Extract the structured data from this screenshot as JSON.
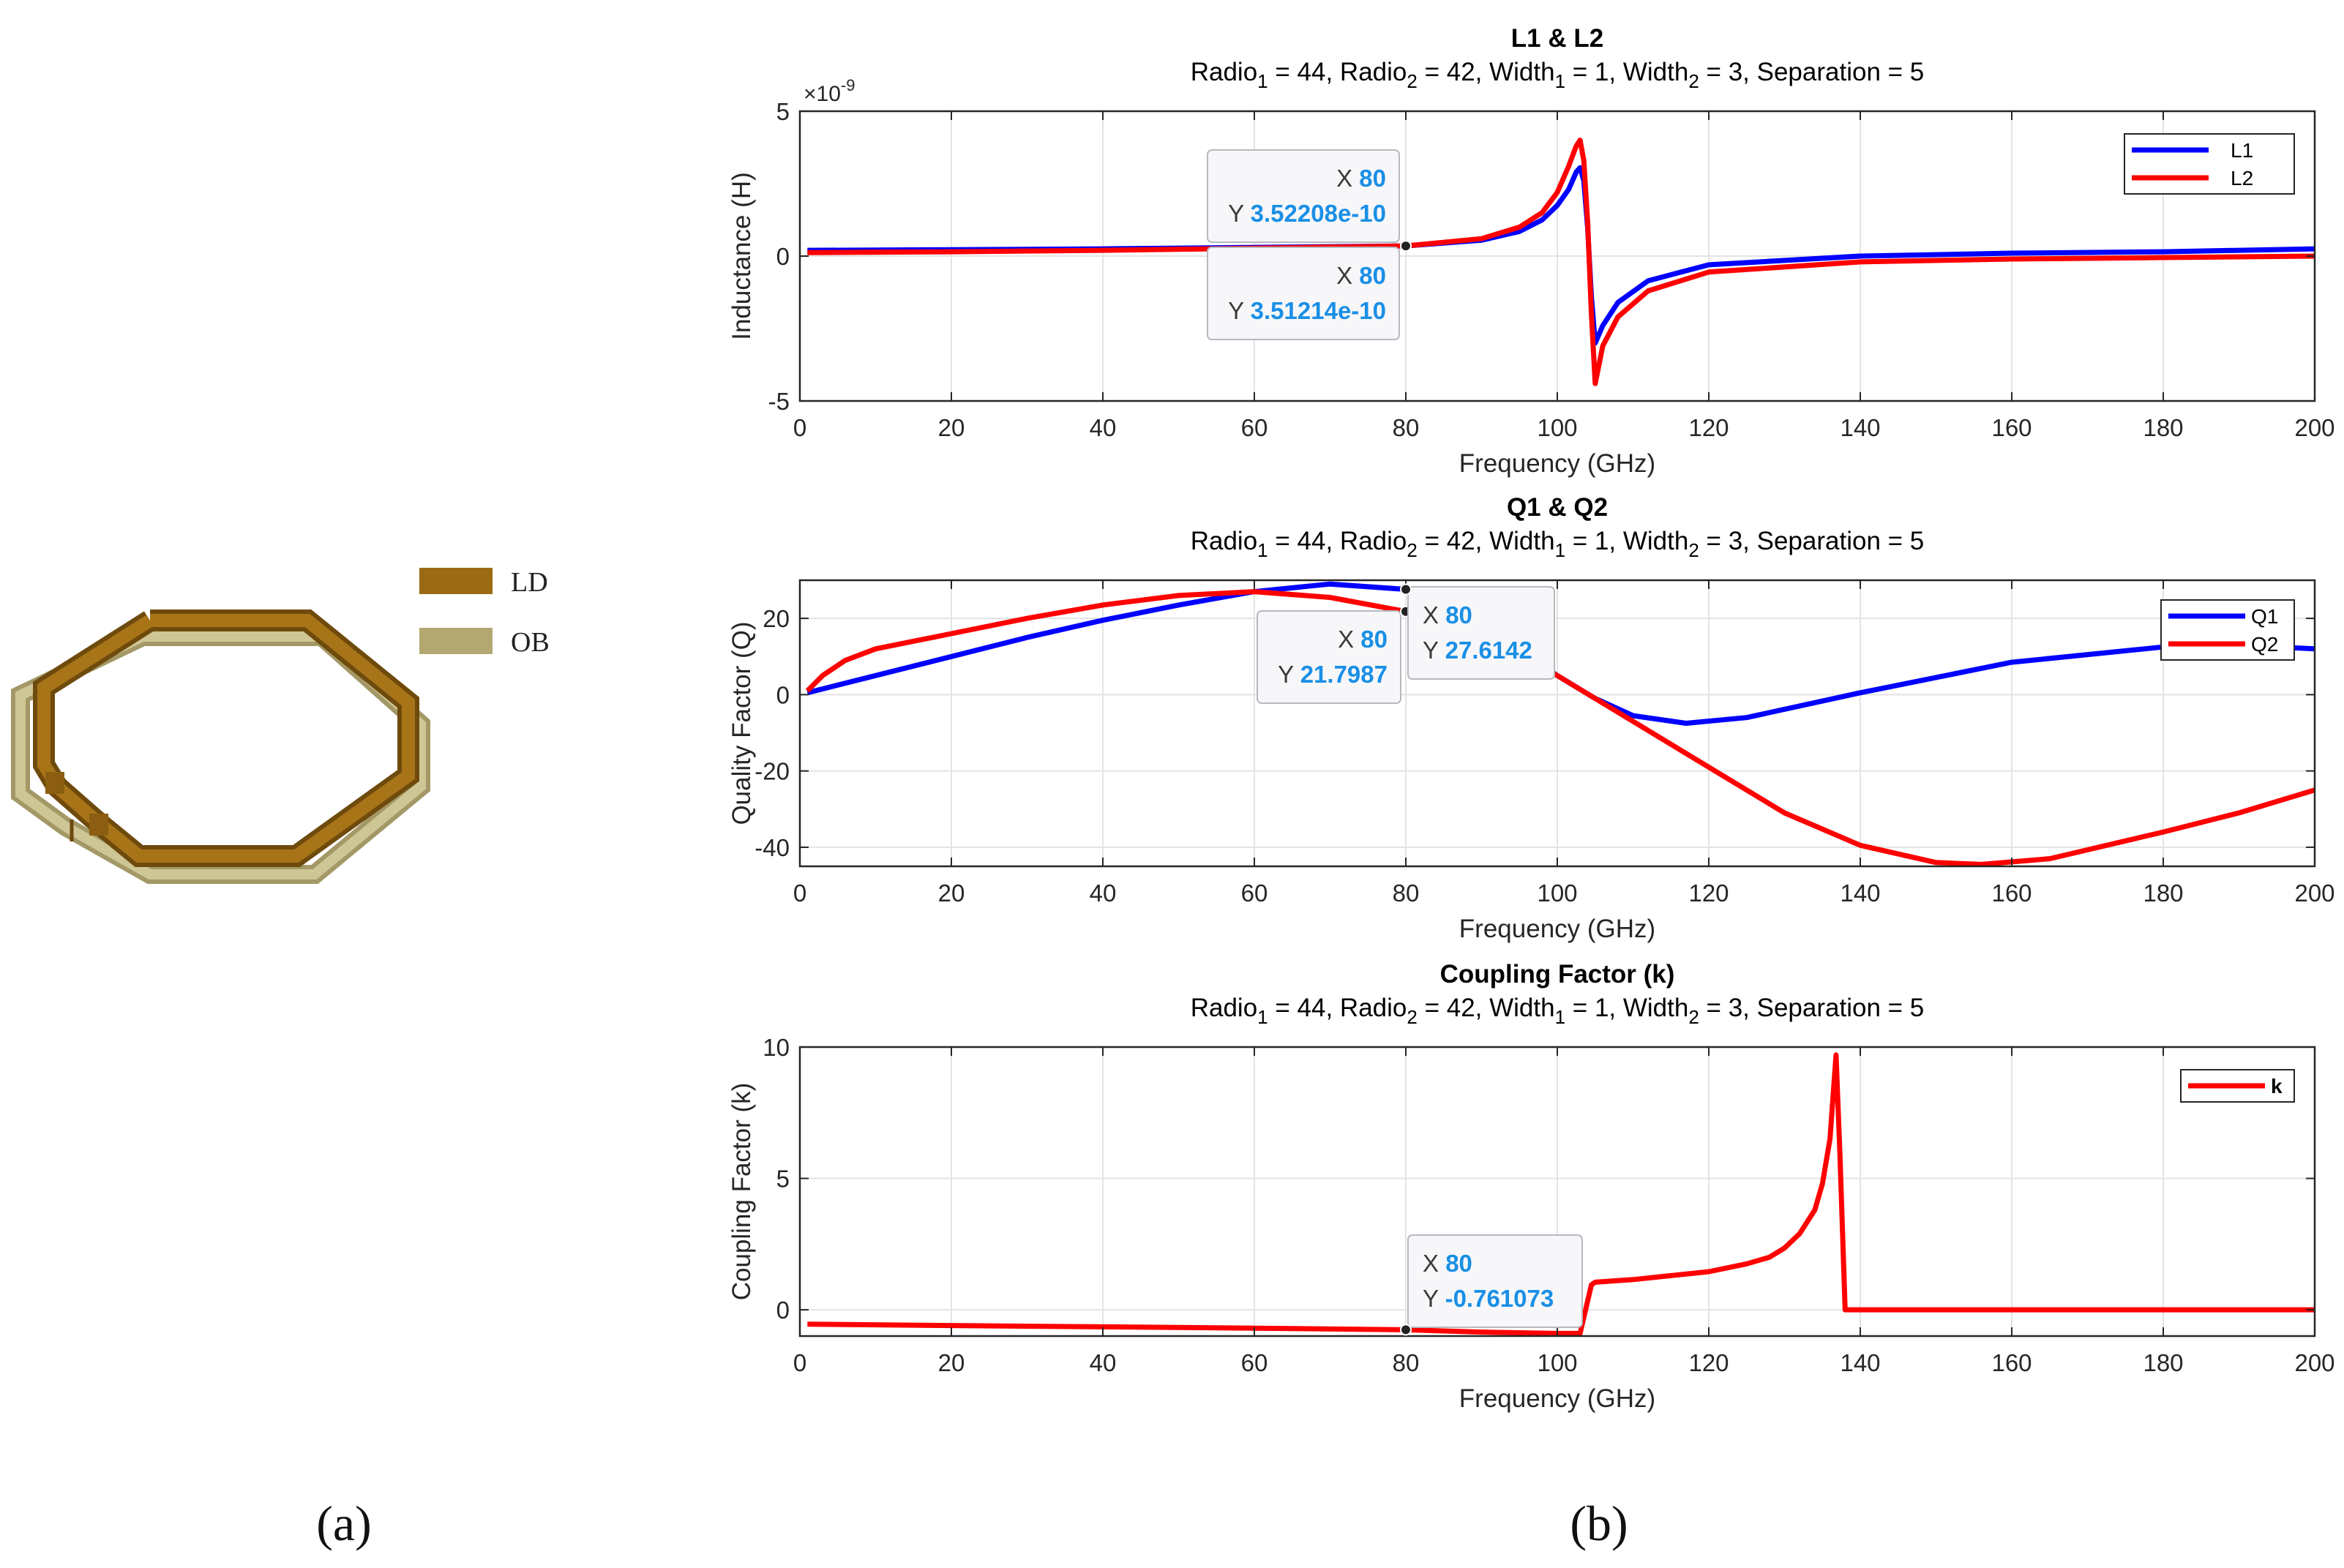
{
  "panel_labels": {
    "a": "(a)",
    "b": "(b)"
  },
  "legend_3d": {
    "ld": "LD",
    "ob": "OB",
    "ld_color": "#9a6a14",
    "ob_color": "#b3a871"
  },
  "subtitle": {
    "radio1": "Radio",
    "sub1": "1",
    "rest1": " = 44, ",
    "radio2": "Radio",
    "sub2": "2",
    "rest2": " = 42, ",
    "width1": "Width",
    "sub3": "1",
    "rest3": " = 1, ",
    "width2": "Width",
    "sub4": "2",
    "rest4": " = 3, Separation = 5"
  },
  "chart_data": [
    {
      "type": "line",
      "title": "L1 & L2",
      "xlabel": "Frequency (GHz)",
      "ylabel": "Inductance (H)",
      "exponent_label": "×10",
      "exponent_power": "-9",
      "xlim": [
        0,
        200
      ],
      "ylim": [
        -5,
        5
      ],
      "xticks": [
        0,
        20,
        40,
        60,
        80,
        100,
        120,
        140,
        160,
        180,
        200
      ],
      "yticks": [
        -5,
        0,
        5
      ],
      "series": [
        {
          "name": "L1",
          "color": "#0000ff",
          "x": [
            1,
            20,
            40,
            60,
            80,
            90,
            95,
            98,
            100,
            101.5,
            102.5,
            103,
            103.5,
            104,
            104.5,
            105,
            106,
            108,
            112,
            120,
            140,
            160,
            180,
            200
          ],
          "y": [
            0.2,
            0.22,
            0.25,
            0.3,
            0.352,
            0.55,
            0.85,
            1.25,
            1.75,
            2.3,
            2.9,
            3.05,
            2.6,
            1.0,
            -1.4,
            -3.0,
            -2.4,
            -1.6,
            -0.85,
            -0.3,
            0.0,
            0.1,
            0.15,
            0.25
          ]
        },
        {
          "name": "L2",
          "color": "#ff0000",
          "x": [
            1,
            20,
            40,
            60,
            80,
            90,
            95,
            98,
            100,
            101.5,
            102.5,
            103,
            103.5,
            104,
            104.5,
            105,
            106,
            108,
            112,
            120,
            140,
            160,
            180,
            200
          ],
          "y": [
            0.12,
            0.15,
            0.2,
            0.27,
            0.351,
            0.6,
            1.0,
            1.5,
            2.2,
            3.1,
            3.8,
            4.0,
            3.3,
            1.2,
            -2.0,
            -4.4,
            -3.1,
            -2.1,
            -1.2,
            -0.55,
            -0.2,
            -0.1,
            -0.05,
            0.0
          ]
        }
      ],
      "datatips": [
        {
          "x_label": "X",
          "x_value": "80",
          "y_label": "Y",
          "y_value": "3.52208e-10",
          "at_x": 80,
          "at_y": 0.352
        },
        {
          "x_label": "X",
          "x_value": "80",
          "y_label": "Y",
          "y_value": "3.51214e-10",
          "at_x": 80,
          "at_y": 0.351
        }
      ]
    },
    {
      "type": "line",
      "title": "Q1 & Q2",
      "xlabel": "Frequency (GHz)",
      "ylabel": "Quality Factor (Q)",
      "xlim": [
        0,
        200
      ],
      "ylim": [
        -45,
        30
      ],
      "xticks": [
        0,
        20,
        40,
        60,
        80,
        100,
        120,
        140,
        160,
        180,
        200
      ],
      "yticks": [
        -40,
        -20,
        0,
        20
      ],
      "series": [
        {
          "name": "Q1",
          "color": "#0000ff",
          "x": [
            1,
            10,
            20,
            30,
            40,
            50,
            60,
            70,
            80,
            90,
            100,
            105,
            110,
            117,
            125,
            140,
            160,
            180,
            190,
            200
          ],
          "y": [
            0.5,
            5,
            10,
            15,
            19.5,
            23.5,
            27,
            29,
            27.6,
            18,
            5,
            -1,
            -5.5,
            -7.5,
            -6,
            0.5,
            8.5,
            12.5,
            13,
            12
          ]
        },
        {
          "name": "Q2",
          "color": "#ff0000",
          "x": [
            1,
            3,
            6,
            10,
            20,
            30,
            40,
            50,
            60,
            70,
            80,
            90,
            100,
            110,
            120,
            130,
            140,
            150,
            156,
            165,
            180,
            190,
            200
          ],
          "y": [
            1,
            5,
            9,
            12,
            16,
            20,
            23.5,
            26,
            27,
            25.5,
            21.8,
            15,
            5,
            -7,
            -19,
            -31,
            -39.5,
            -44,
            -44.5,
            -43,
            -36,
            -31,
            -25
          ]
        }
      ],
      "datatips": [
        {
          "x_label": "X",
          "x_value": "80",
          "y_label": "Y",
          "y_value": "21.7987",
          "at_x": 80,
          "at_y": 21.8
        },
        {
          "x_label": "X",
          "x_value": "80",
          "y_label": "Y",
          "y_value": "27.6142",
          "at_x": 80,
          "at_y": 27.6
        }
      ]
    },
    {
      "type": "line",
      "title": "Coupling Factor (k)",
      "xlabel": "Frequency (GHz)",
      "ylabel": "Coupling Factor (k)",
      "xlim": [
        0,
        200
      ],
      "ylim": [
        -1,
        10
      ],
      "xticks": [
        0,
        20,
        40,
        60,
        80,
        100,
        120,
        140,
        160,
        180,
        200
      ],
      "yticks": [
        0,
        5,
        10
      ],
      "series": [
        {
          "name": "k",
          "color": "#ff0000",
          "x": [
            1,
            20,
            40,
            60,
            80,
            90,
            100,
            103,
            104.5,
            105,
            110,
            115,
            120,
            125,
            128,
            130,
            132,
            134,
            135,
            136,
            136.8,
            137.3,
            138,
            140,
            160,
            180,
            200
          ],
          "y": [
            -0.55,
            -0.6,
            -0.65,
            -0.7,
            -0.761,
            -0.85,
            -0.9,
            -0.9,
            0.95,
            1.05,
            1.15,
            1.3,
            1.45,
            1.75,
            2.0,
            2.35,
            2.9,
            3.8,
            4.8,
            6.5,
            9.7,
            6.0,
            0.0,
            0.0,
            0.0,
            0.0,
            0.0
          ]
        }
      ],
      "datatips": [
        {
          "x_label": "X",
          "x_value": "80",
          "y_label": "Y",
          "y_value": "-0.761073",
          "at_x": 80,
          "at_y": -0.761
        }
      ]
    }
  ]
}
